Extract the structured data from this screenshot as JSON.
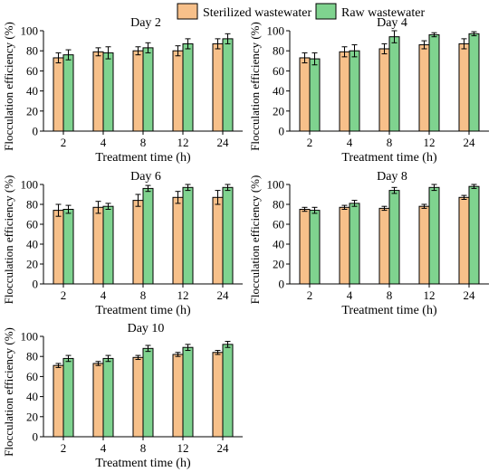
{
  "legend": {
    "items": [
      {
        "label": "Sterilized wastewater",
        "color": "#F7C08A"
      },
      {
        "label": "Raw wastewater",
        "color": "#7FD38F"
      }
    ]
  },
  "chart_data": [
    {
      "type": "bar",
      "title": "Day 2",
      "xlabel": "Treatment time (h)",
      "ylabel": "Flocculation efficiency (%)",
      "ylim": [
        0,
        100
      ],
      "yticks": [
        0,
        20,
        40,
        60,
        80,
        100
      ],
      "categories": [
        "2",
        "4",
        "8",
        "12",
        "24"
      ],
      "series": [
        {
          "name": "Sterilized wastewater",
          "values": [
            73,
            79,
            80,
            80,
            87
          ],
          "errors": [
            5,
            4,
            4,
            5,
            5
          ]
        },
        {
          "name": "Raw wastewater",
          "values": [
            76,
            78,
            83,
            87,
            92
          ],
          "errors": [
            5,
            6,
            5,
            5,
            5
          ]
        }
      ]
    },
    {
      "type": "bar",
      "title": "Day 4",
      "xlabel": "Treatment time (h)",
      "ylabel": "Flocculation efficiency (%)",
      "ylim": [
        0,
        100
      ],
      "yticks": [
        0,
        20,
        40,
        60,
        80,
        100
      ],
      "categories": [
        "2",
        "4",
        "8",
        "12",
        "24"
      ],
      "series": [
        {
          "name": "Sterilized wastewater",
          "values": [
            73,
            79,
            82,
            86,
            87
          ],
          "errors": [
            5,
            5,
            5,
            4,
            5
          ]
        },
        {
          "name": "Raw wastewater",
          "values": [
            72,
            80,
            94,
            96,
            97
          ],
          "errors": [
            6,
            6,
            6,
            2,
            2
          ]
        }
      ]
    },
    {
      "type": "bar",
      "title": "Day 6",
      "xlabel": "Treatment time (h)",
      "ylabel": "Flocculation efficiency (%)",
      "ylim": [
        0,
        100
      ],
      "yticks": [
        0,
        20,
        40,
        60,
        80,
        100
      ],
      "categories": [
        "2",
        "4",
        "8",
        "12",
        "24"
      ],
      "series": [
        {
          "name": "Sterilized wastewater",
          "values": [
            74,
            77,
            84,
            87,
            87
          ],
          "errors": [
            6,
            6,
            6,
            6,
            7
          ]
        },
        {
          "name": "Raw wastewater",
          "values": [
            75,
            78,
            96,
            97,
            97
          ],
          "errors": [
            4,
            3,
            3,
            3,
            3
          ]
        }
      ]
    },
    {
      "type": "bar",
      "title": "Day 8",
      "xlabel": "Treatment time (h)",
      "ylabel": "Flocculation efficiency (%)",
      "ylim": [
        0,
        100
      ],
      "yticks": [
        0,
        20,
        40,
        60,
        80,
        100
      ],
      "categories": [
        "2",
        "4",
        "8",
        "12",
        "24"
      ],
      "series": [
        {
          "name": "Sterilized wastewater",
          "values": [
            75,
            77,
            76,
            78,
            87
          ],
          "errors": [
            2,
            2,
            2,
            2,
            2
          ]
        },
        {
          "name": "Raw wastewater",
          "values": [
            74,
            81,
            94,
            97,
            98
          ],
          "errors": [
            3,
            3,
            3,
            3,
            2
          ]
        }
      ]
    },
    {
      "type": "bar",
      "title": "Day 10",
      "xlabel": "Treatment time (h)",
      "ylabel": "Flocculation efficiency (%)",
      "ylim": [
        0,
        100
      ],
      "yticks": [
        0,
        20,
        40,
        60,
        80,
        100
      ],
      "categories": [
        "2",
        "4",
        "8",
        "12",
        "24"
      ],
      "series": [
        {
          "name": "Sterilized wastewater",
          "values": [
            71,
            73,
            79,
            82,
            84
          ],
          "errors": [
            2,
            2,
            2,
            2,
            2
          ]
        },
        {
          "name": "Raw wastewater",
          "values": [
            78,
            78,
            88,
            89,
            92
          ],
          "errors": [
            3,
            3,
            3,
            3,
            3
          ]
        }
      ]
    }
  ]
}
